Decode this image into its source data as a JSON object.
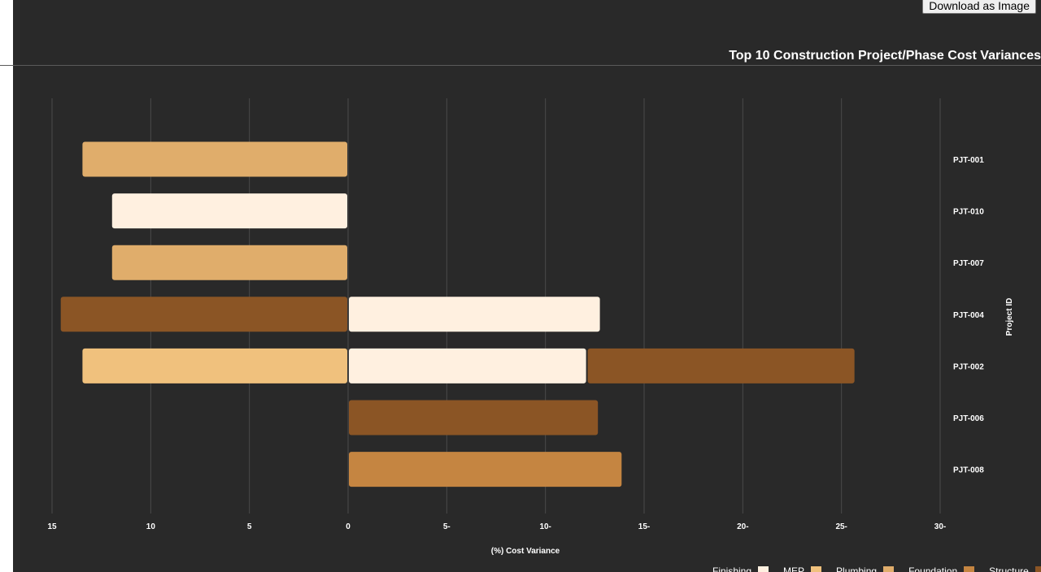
{
  "toolbar": {
    "download_label": "Download as Image"
  },
  "chart_data": {
    "type": "bar",
    "orientation": "horizontal",
    "stacked": "diverging",
    "title": "Top 10 Construction Project/Phase Cost Variances",
    "xlabel": "(%) Cost Variance",
    "ylabel": "Project ID",
    "xlim": [
      -15,
      30
    ],
    "x_ticks": [
      -15,
      -10,
      -5,
      0,
      5,
      10,
      15,
      20,
      25,
      30
    ],
    "x_tick_labels": [
      "15",
      "10",
      "5",
      "0",
      "5-",
      "10-",
      "15-",
      "20-",
      "25-",
      "30-"
    ],
    "grid": true,
    "categories": [
      "PJT-001",
      "PJT-010",
      "PJT-007",
      "PJT-004",
      "PJT-002",
      "PJT-006",
      "PJT-008"
    ],
    "series": [
      {
        "name": "Finishing",
        "color": "#fff0e0",
        "values": [
          0,
          -12,
          0,
          12.8,
          12.1,
          0,
          0
        ]
      },
      {
        "name": "MEP",
        "color": "#f0c17d",
        "values": [
          0,
          0,
          0,
          0,
          -13.5,
          0,
          0
        ]
      },
      {
        "name": "Plumbing",
        "color": "#e0ad6b",
        "values": [
          -13.5,
          0,
          -12,
          0,
          0,
          0,
          0
        ]
      },
      {
        "name": "Foundation",
        "color": "#c58541",
        "values": [
          0,
          0,
          0,
          0,
          0,
          0,
          13.9
        ]
      },
      {
        "name": "Structure",
        "color": "#8b5525",
        "values": [
          0,
          0,
          0,
          -14.6,
          13.6,
          12.7,
          0
        ]
      }
    ],
    "legend_position": "bottom-right",
    "legend_labels": [
      "Finishing",
      "MEP",
      "Plumbing",
      "Foundation",
      "Structure"
    ],
    "legend_colors": [
      "#fff0e0",
      "#f0c17d",
      "#e0ad6b",
      "#c58541",
      "#8b5525"
    ]
  }
}
